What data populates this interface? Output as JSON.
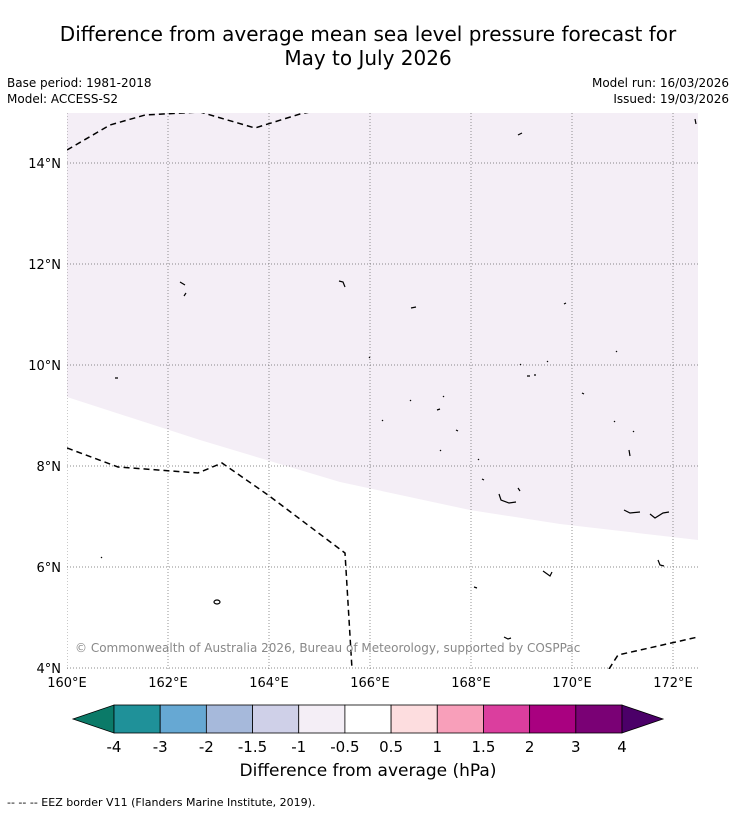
{
  "header": {
    "title_line1": "Difference from average mean sea level pressure forecast for",
    "title_line2": "May to July 2026",
    "base_period": "Base period: 1981-2018",
    "model": "Model: ACCESS-S2",
    "model_run": "Model run: 16/03/2026",
    "issued": "Issued: 19/03/2026"
  },
  "map": {
    "lat_labels": [
      "14°N",
      "12°N",
      "10°N",
      "8°N",
      "6°N",
      "4°N"
    ],
    "lon_labels": [
      "160°E",
      "162°E",
      "164°E",
      "166°E",
      "168°E",
      "170°E",
      "172°E"
    ],
    "copyright": "© Commonwealth of Australia 2026, Bureau of Meteorology, supported by COSPPac",
    "anomaly_region_color": "#f4eef6",
    "anomaly_region_class": "-0.5 to -1 hPa",
    "eez_color": "#000000"
  },
  "colorbar": {
    "ticks": [
      "-4",
      "-3",
      "-2",
      "-1.5",
      "-1",
      "-0.5",
      "0.5",
      "1",
      "1.5",
      "2",
      "3",
      "4"
    ],
    "colors": [
      "#0b7a68",
      "#1f9199",
      "#66a8d3",
      "#a6b9db",
      "#cfd0e8",
      "#f4eef6",
      "#ffffff",
      "#fddddf",
      "#f89fba",
      "#db3e9e",
      "#a90180",
      "#7a0175",
      "#4b0068"
    ],
    "label": "Difference from average (hPa)"
  },
  "footer": {
    "legend_text": "--  --  -- EEZ border V11 (Flanders Marine Institute, 2019)."
  }
}
